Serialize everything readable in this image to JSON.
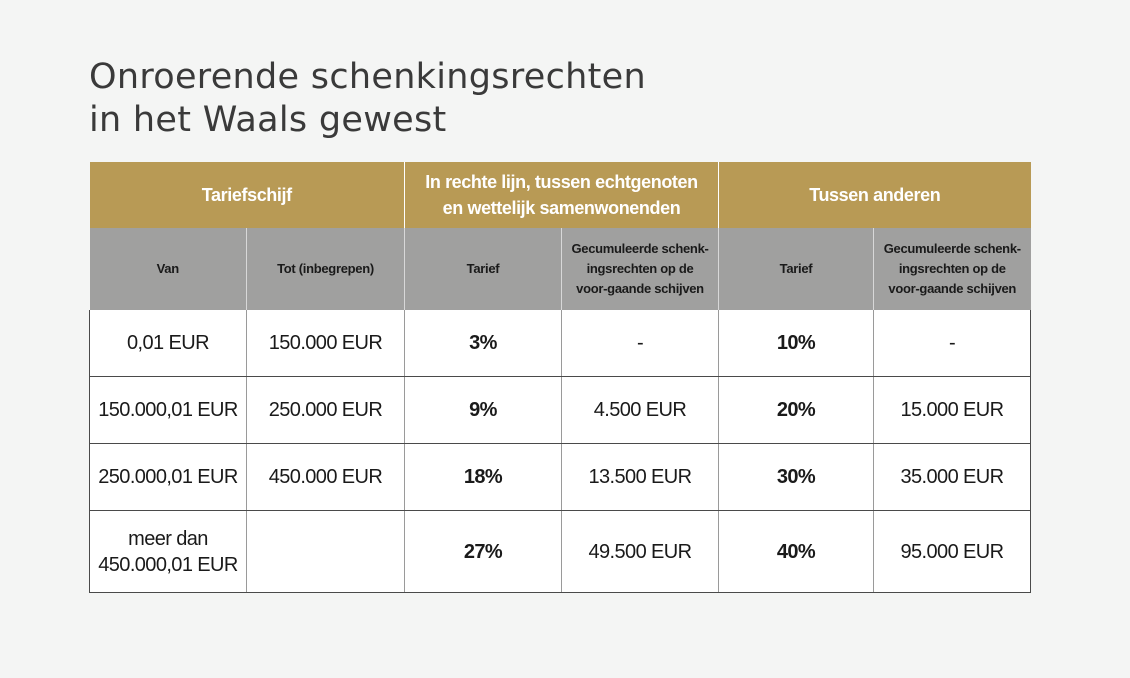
{
  "title": {
    "line1": "Onroerende schenkingsrechten",
    "line2": "in het Waals gewest"
  },
  "table": {
    "group_headers": [
      "Tariefschijf",
      "In rechte lijn, tussen echtgenoten en wettelijk samenwonenden",
      "Tussen anderen"
    ],
    "sub_headers": [
      "Van",
      "Tot (inbegrepen)",
      "Tarief",
      "Gecumuleerde schenk-ingsrechten op de voor-gaande schijven",
      "Tarief",
      "Gecumuleerde schenk-ingsrechten op de voor-gaande schijven"
    ],
    "rows": [
      [
        "0,01 EUR",
        "150.000 EUR",
        "3%",
        "-",
        "10%",
        "-"
      ],
      [
        "150.000,01 EUR",
        "250.000 EUR",
        "9%",
        "4.500 EUR",
        "20%",
        "15.000 EUR"
      ],
      [
        "250.000,01 EUR",
        "450.000 EUR",
        "18%",
        "13.500 EUR",
        "30%",
        "35.000 EUR"
      ],
      [
        "meer dan 450.000,01 EUR",
        "",
        "27%",
        "49.500 EUR",
        "40%",
        "95.000 EUR"
      ]
    ]
  },
  "colors": {
    "header_gold": "#b89a55",
    "header_gray": "#a0a09f",
    "background": "#f4f5f4"
  }
}
